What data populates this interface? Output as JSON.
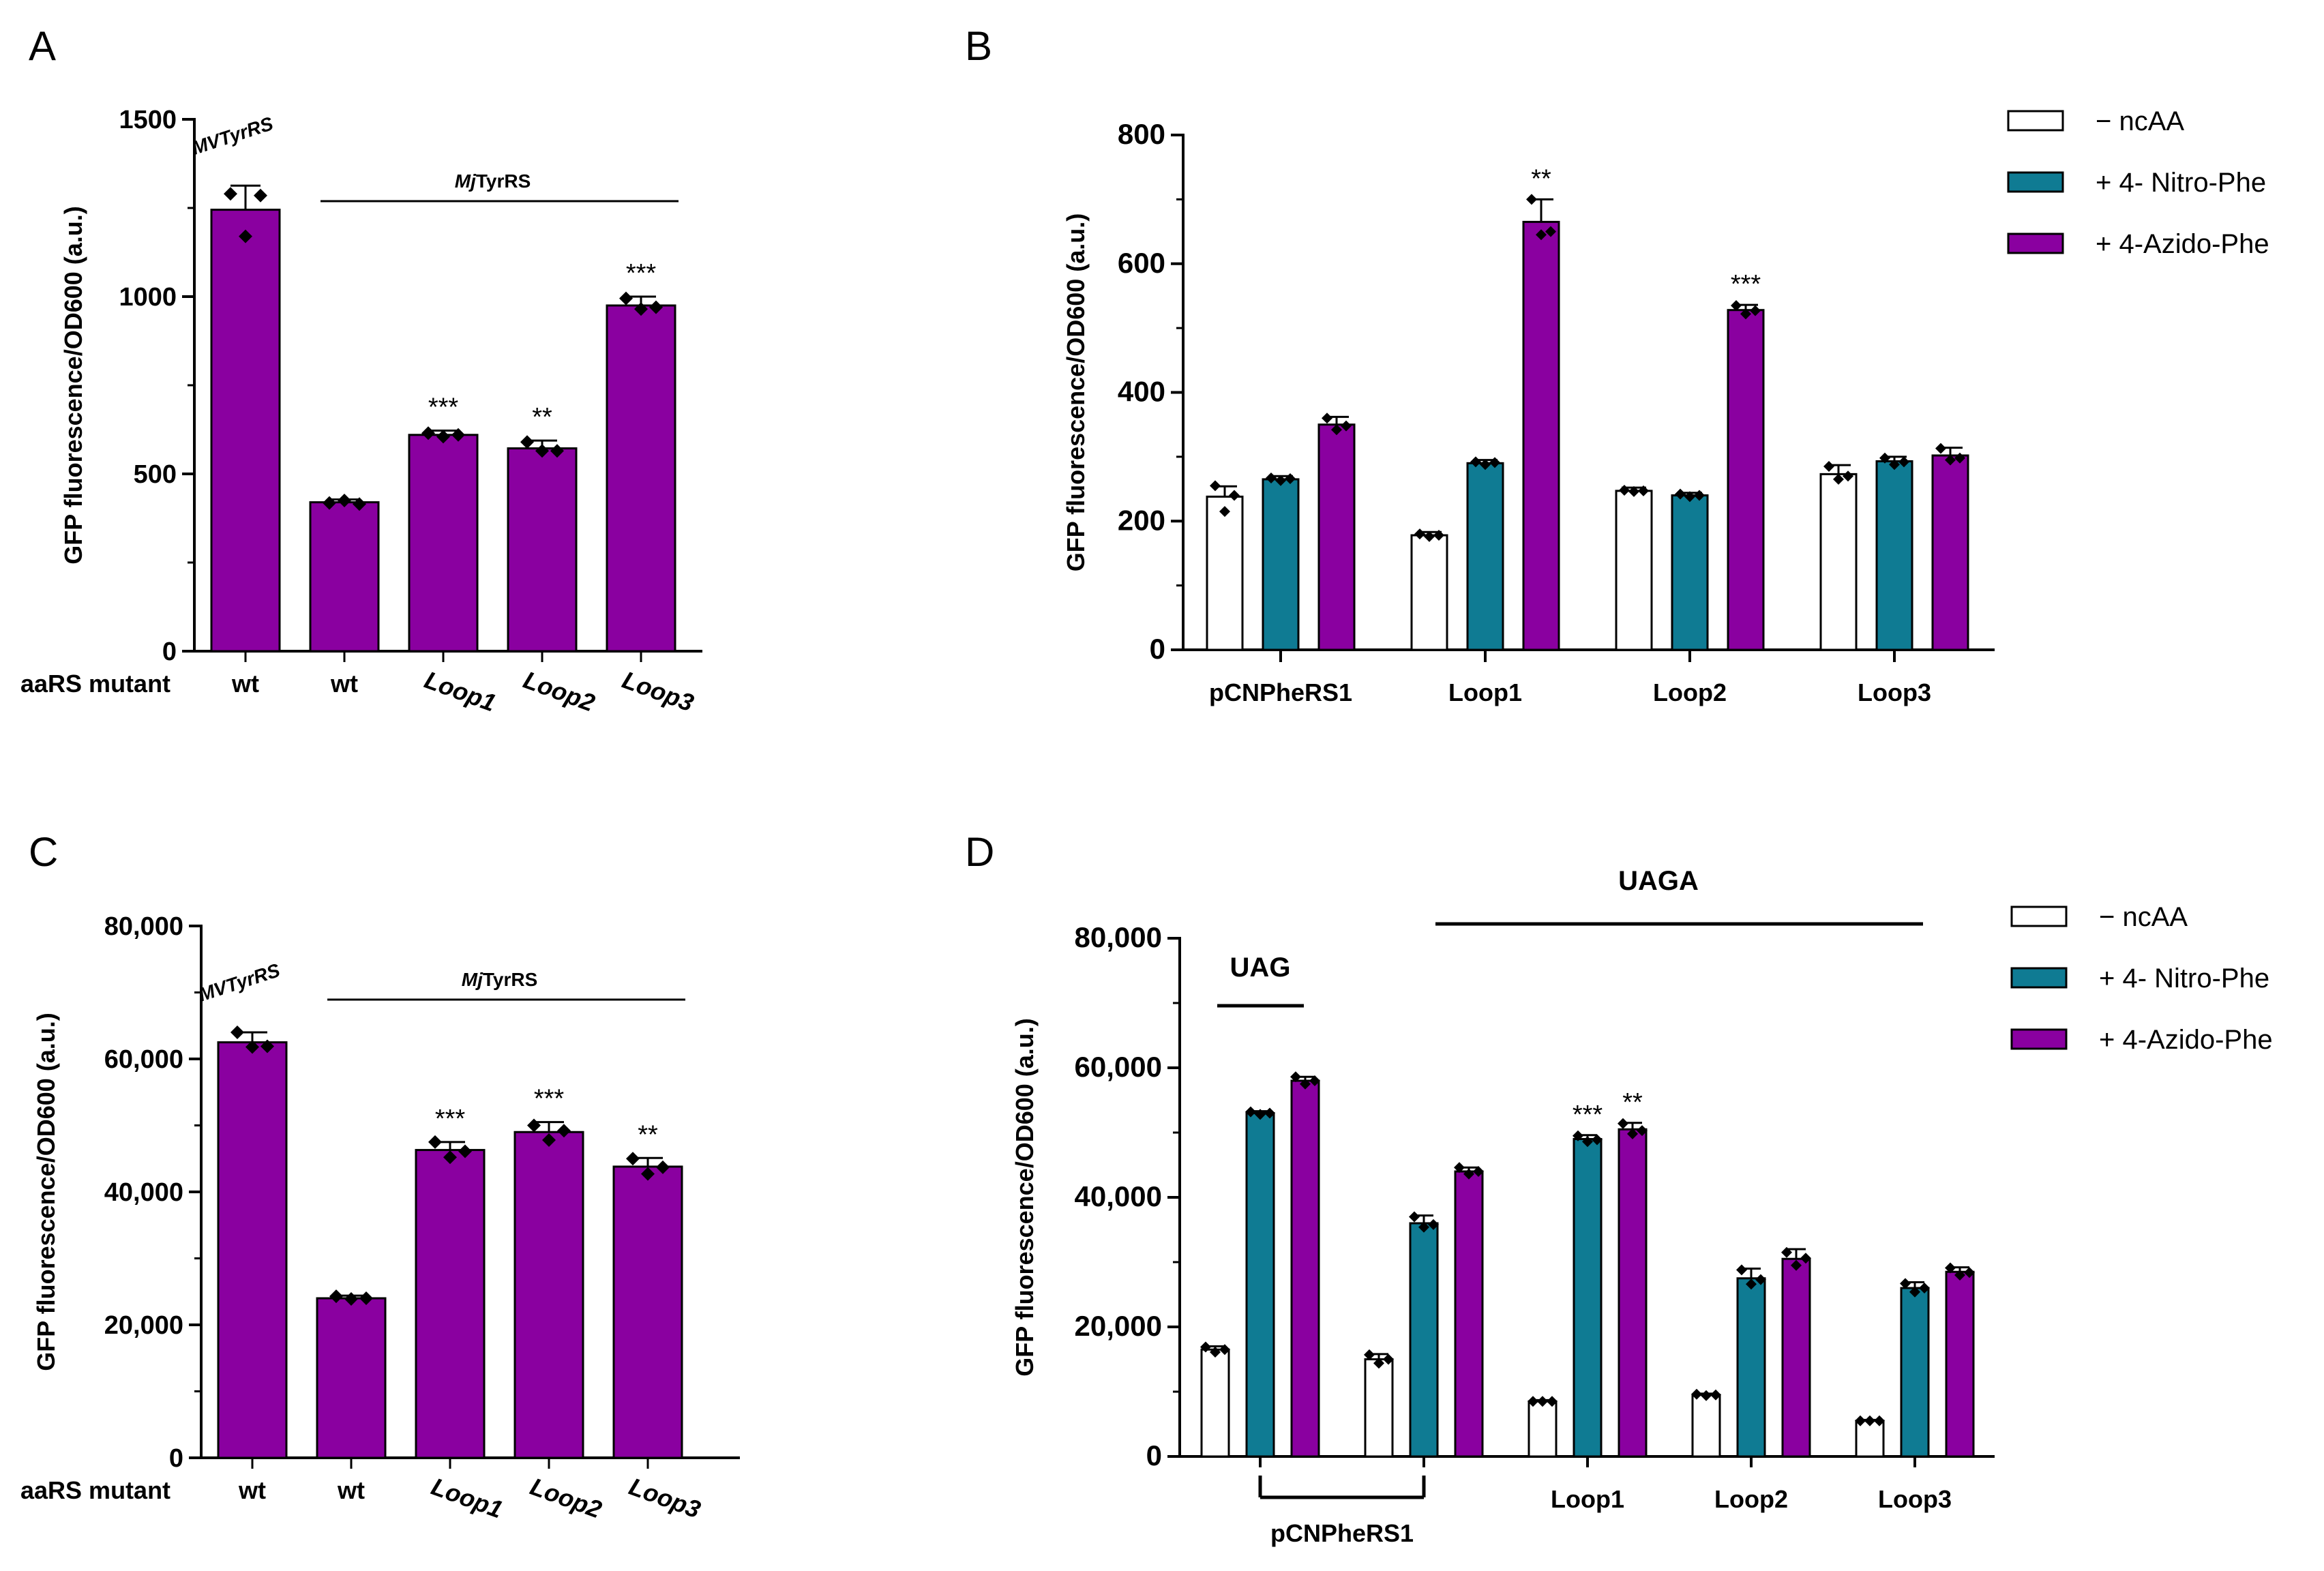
{
  "colors": {
    "purple": "#8a00a0",
    "teal": "#0f7b93",
    "white": "#ffffff",
    "black": "#000000"
  },
  "chart_data": [
    {
      "panel": "A",
      "type": "bar",
      "ylabel": "GFP fluorescence/OD600 (a.u.)",
      "ylim": [
        0,
        1500
      ],
      "yticks": [
        "0",
        "500",
        "1000",
        "1500"
      ],
      "row_label": "aaRS mutant",
      "categories": [
        "wt",
        "wt",
        "Loop1",
        "Loop2",
        "Loop3"
      ],
      "values": [
        1245,
        420,
        610,
        572,
        975
      ],
      "errors": [
        68,
        8,
        12,
        22,
        25
      ],
      "points": [
        [
          1290,
          1170,
          1285
        ],
        [
          418,
          425,
          415
        ],
        [
          615,
          605,
          610
        ],
        [
          590,
          565,
          565
        ],
        [
          995,
          965,
          970
        ]
      ],
      "significance": [
        "",
        "",
        "***",
        "**",
        "***"
      ],
      "group_labels": {
        "first": "MVTyrRS",
        "bar": "MjTyrRS",
        "bar_prefix": "Mj",
        "bar_suffix": "TyrRS"
      }
    },
    {
      "panel": "B",
      "type": "bar",
      "ylabel": "GFP fluorescence/OD600 (a.u.)",
      "ylim": [
        0,
        800
      ],
      "yticks": [
        "0",
        "200",
        "400",
        "600",
        "800"
      ],
      "categories": [
        "pCNPheRS1",
        "Loop1",
        "Loop2",
        "Loop3"
      ],
      "series": [
        {
          "name": "− ncAA",
          "values": [
            238,
            178,
            247,
            273
          ],
          "errors": [
            16,
            5,
            5,
            14
          ],
          "points": [
            [
              255,
              215,
              240
            ],
            [
              180,
              176,
              178
            ],
            [
              248,
              246,
              247
            ],
            [
              285,
              265,
              270
            ]
          ]
        },
        {
          "name": "+ 4- Nitro-Phe",
          "values": [
            265,
            290,
            240,
            293
          ],
          "errors": [
            5,
            5,
            4,
            7
          ],
          "points": [
            [
              267,
              263,
              266
            ],
            [
              292,
              288,
              291
            ],
            [
              242,
              238,
              240
            ],
            [
              298,
              288,
              292
            ]
          ]
        },
        {
          "name": "+ 4-Azido-Phe",
          "values": [
            350,
            665,
            528,
            302
          ],
          "errors": [
            12,
            35,
            8,
            12
          ],
          "points": [
            [
              360,
              342,
              348
            ],
            [
              700,
              645,
              650
            ],
            [
              535,
              522,
              527
            ],
            [
              313,
              295,
              298
            ]
          ]
        }
      ],
      "significance": [
        [
          "",
          "",
          ""
        ],
        [
          "",
          "",
          "**"
        ],
        [
          "",
          "",
          "***"
        ],
        [
          "",
          "",
          ""
        ]
      ]
    },
    {
      "panel": "C",
      "type": "bar",
      "ylabel": "GFP fluorescence/OD600 (a.u.)",
      "ylim": [
        0,
        80000
      ],
      "yticks": [
        "0",
        "20,000",
        "40,000",
        "60,000",
        "80,000"
      ],
      "row_label": "aaRS mutant",
      "categories": [
        "wt",
        "wt",
        "Loop1",
        "Loop2",
        "Loop3"
      ],
      "values": [
        62500,
        24000,
        46300,
        49000,
        43800
      ],
      "errors": [
        1500,
        400,
        1200,
        1500,
        1300
      ],
      "points": [
        [
          64000,
          61800,
          61900
        ],
        [
          24300,
          23900,
          24000
        ],
        [
          47500,
          45200,
          46100
        ],
        [
          50000,
          47800,
          49200
        ],
        [
          45000,
          42700,
          43700
        ]
      ],
      "significance": [
        "",
        "",
        "***",
        "***",
        "**"
      ],
      "group_labels": {
        "first": "MVTyrRS",
        "bar": "MjTyrRS",
        "bar_prefix": "Mj",
        "bar_suffix": "TyrRS"
      }
    },
    {
      "panel": "D",
      "type": "bar",
      "ylabel": "GFP fluorescence/OD600 (a.u.)",
      "ylim": [
        0,
        80000
      ],
      "yticks": [
        "0",
        "20,000",
        "40,000",
        "60,000",
        "80,000"
      ],
      "categories": [
        "pCNPheRS1 (UAG)",
        "pCNPheRS1 (UAGA)",
        "Loop1",
        "Loop2",
        "Loop3"
      ],
      "category_labels": [
        "pCNPheRS1",
        "Loop1",
        "Loop2",
        "Loop3"
      ],
      "codon_labels": {
        "uag": "UAG",
        "uaga": "UAGA"
      },
      "series": [
        {
          "name": "− ncAA",
          "values": [
            16500,
            15000,
            8500,
            9500,
            5500
          ],
          "errors": [
            500,
            800,
            200,
            200,
            150
          ],
          "points": [
            [
              16900,
              16100,
              16500
            ],
            [
              15700,
              14400,
              15000
            ],
            [
              8500,
              8500,
              8500
            ],
            [
              9600,
              9400,
              9500
            ],
            [
              5500,
              5500,
              5500
            ]
          ]
        },
        {
          "name": "+ 4- Nitro-Phe",
          "values": [
            53000,
            36000,
            49000,
            27500,
            26000
          ],
          "errors": [
            300,
            1200,
            600,
            1500,
            900
          ],
          "points": [
            [
              53200,
              52800,
              53000
            ],
            [
              37000,
              35400,
              35800
            ],
            [
              49500,
              48600,
              48900
            ],
            [
              28800,
              26600,
              27300
            ],
            [
              26700,
              25400,
              26000
            ]
          ]
        },
        {
          "name": "+ 4-Azido-Phe",
          "values": [
            58000,
            44000,
            50500,
            30500,
            28500
          ],
          "errors": [
            600,
            600,
            1000,
            1500,
            700
          ],
          "points": [
            [
              58600,
              57500,
              58000
            ],
            [
              44600,
              43600,
              44000
            ],
            [
              51400,
              49800,
              50300
            ],
            [
              31500,
              29500,
              30600
            ],
            [
              29100,
              28000,
              28400
            ]
          ]
        }
      ],
      "significance": [
        [
          "",
          "",
          ""
        ],
        [
          "",
          "",
          ""
        ],
        [
          "",
          "***",
          "**"
        ],
        [
          "",
          "",
          ""
        ],
        [
          "",
          "",
          ""
        ]
      ]
    }
  ]
}
